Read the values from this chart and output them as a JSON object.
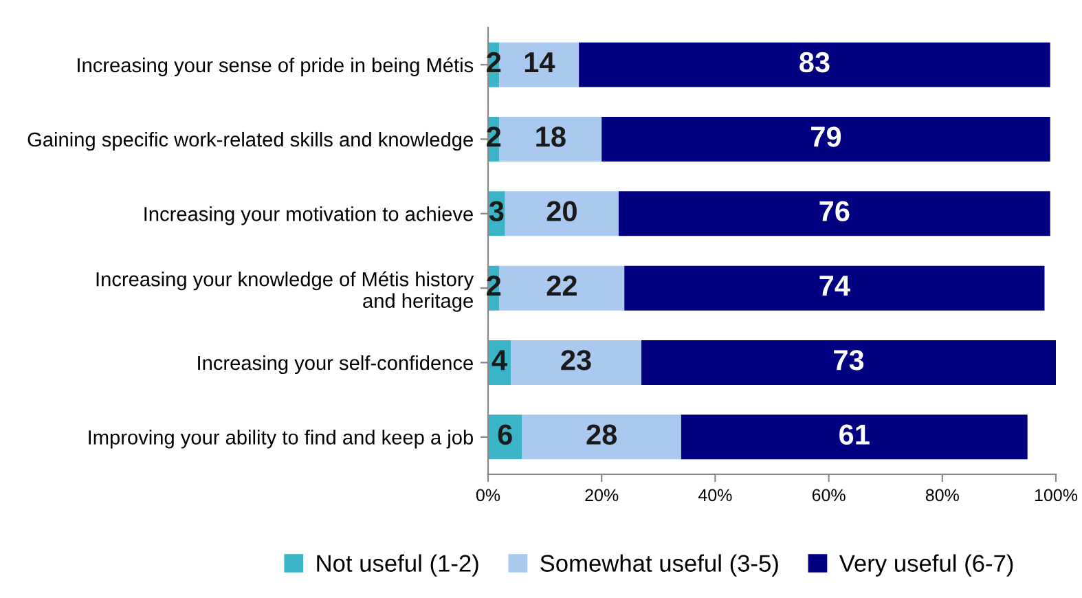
{
  "chart_data": {
    "type": "bar",
    "orientation": "horizontal",
    "stacked": true,
    "data_labels": true,
    "grid": false,
    "legend": "bottom",
    "categories": [
      "Increasing your sense of pride in being Métis",
      "Gaining specific work-related skills and knowledge",
      "Increasing your motivation to achieve",
      "Increasing your knowledge of Métis history\nand heritage",
      "Increasing your self-confidence",
      "Improving your ability to find and keep a job"
    ],
    "series": [
      {
        "name": "Not useful (1-2)",
        "color": "#3cb4c8",
        "values": [
          2,
          2,
          3,
          2,
          4,
          6
        ]
      },
      {
        "name": "Somewhat useful (3-5)",
        "color": "#a9c9ef",
        "values": [
          14,
          18,
          20,
          22,
          23,
          28
        ]
      },
      {
        "name": "Very useful (6-7)",
        "color": "#000080",
        "values": [
          83,
          79,
          76,
          74,
          73,
          61
        ]
      }
    ],
    "xlim": [
      0,
      100
    ],
    "xticks": [
      {
        "value": 0,
        "label": "0%"
      },
      {
        "value": 20,
        "label": "20%"
      },
      {
        "value": 40,
        "label": "40%"
      },
      {
        "value": 60,
        "label": "60%"
      },
      {
        "value": 80,
        "label": "80%"
      },
      {
        "value": 100,
        "label": "100%"
      }
    ]
  }
}
